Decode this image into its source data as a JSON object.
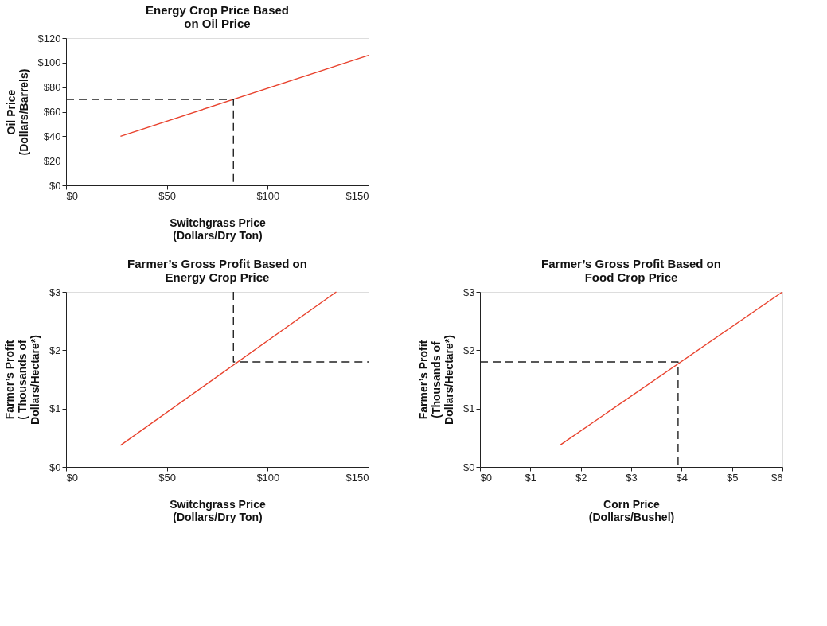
{
  "chart_data": [
    {
      "type": "line",
      "title": "Energy Crop Price Based\non Oil Price",
      "xlabel": "Switchgrass Price\n(Dollars/Dry Ton)",
      "ylabel": "Oil Price\n(Dollars/Barrels)",
      "grid": false,
      "marker": "none",
      "xlim": [
        0,
        150
      ],
      "xticks": [
        {
          "value": 0,
          "label": "$0"
        },
        {
          "value": 50,
          "label": "$50"
        },
        {
          "value": 100,
          "label": "$100"
        },
        {
          "value": 150,
          "label": "$150"
        }
      ],
      "ylim": [
        0,
        120
      ],
      "yticks": [
        {
          "value": 0,
          "label": "$0"
        },
        {
          "value": 20,
          "label": "$20"
        },
        {
          "value": 40,
          "label": "$40"
        },
        {
          "value": 60,
          "label": "$60"
        },
        {
          "value": 80,
          "label": "$80"
        },
        {
          "value": 100,
          "label": "$100"
        },
        {
          "value": 120,
          "label": "$120"
        }
      ],
      "series": [
        {
          "color": "#e8412c",
          "line_style": "solid",
          "x": [
            27,
            150
          ],
          "values": [
            40,
            106
          ]
        },
        {
          "color": "#222222",
          "line_style": "dashed",
          "x": [
            0,
            83,
            83
          ],
          "values": [
            70,
            70,
            0
          ]
        }
      ]
    },
    {
      "type": "line",
      "title": "Farmer’s Gross Profit Based on\nEnergy Crop Price",
      "xlabel": "Switchgrass Price\n(Dollars/Dry Ton)",
      "ylabel": "Farmer’s Profit\n( Thousands of\nDollars/Hectare*)",
      "grid": false,
      "marker": "none",
      "xlim": [
        0,
        150
      ],
      "xticks": [
        {
          "value": 0,
          "label": "$0"
        },
        {
          "value": 50,
          "label": "$50"
        },
        {
          "value": 100,
          "label": "$100"
        },
        {
          "value": 150,
          "label": "$150"
        }
      ],
      "ylim": [
        0,
        3
      ],
      "yticks": [
        {
          "value": 0,
          "label": "$0"
        },
        {
          "value": 1,
          "label": "$1"
        },
        {
          "value": 2,
          "label": "$2"
        },
        {
          "value": 3,
          "label": "$3"
        }
      ],
      "series": [
        {
          "color": "#e8412c",
          "line_style": "solid",
          "x": [
            27,
            134
          ],
          "values": [
            0.37,
            3.0
          ]
        },
        {
          "color": "#222222",
          "line_style": "dashed",
          "x": [
            83,
            83,
            150
          ],
          "values": [
            3,
            1.8,
            1.8
          ]
        }
      ]
    },
    {
      "type": "line",
      "title": "Farmer’s Gross Profit Based on\nFood Crop Price",
      "xlabel": "Corn Price\n(Dollars/Bushel)",
      "ylabel": "Farmer’s Profit\n(Thousands of\nDollars/Hectare*)",
      "grid": false,
      "marker": "none",
      "xlim": [
        0,
        6
      ],
      "xticks": [
        {
          "value": 0,
          "label": "$0"
        },
        {
          "value": 1,
          "label": "$1"
        },
        {
          "value": 2,
          "label": "$2"
        },
        {
          "value": 3,
          "label": "$3"
        },
        {
          "value": 4,
          "label": "$4"
        },
        {
          "value": 5,
          "label": "$5"
        },
        {
          "value": 6,
          "label": "$6"
        }
      ],
      "ylim": [
        0,
        3
      ],
      "yticks": [
        {
          "value": 0,
          "label": "$0"
        },
        {
          "value": 1,
          "label": "$1"
        },
        {
          "value": 2,
          "label": "$2"
        },
        {
          "value": 3,
          "label": "$3"
        }
      ],
      "series": [
        {
          "color": "#e8412c",
          "line_style": "solid",
          "x": [
            1.6,
            6
          ],
          "values": [
            0.38,
            3.0
          ]
        },
        {
          "color": "#222222",
          "line_style": "dashed",
          "x": [
            0,
            3.93,
            3.93
          ],
          "values": [
            1.8,
            1.8,
            0
          ]
        }
      ]
    }
  ]
}
